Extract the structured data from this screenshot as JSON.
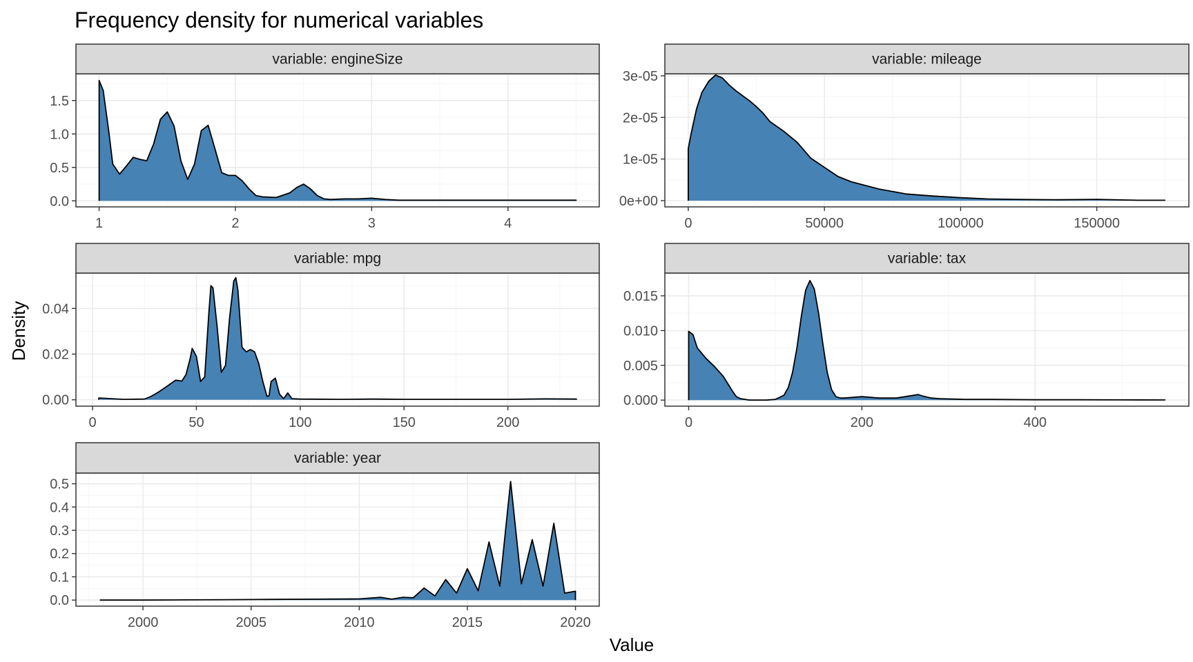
{
  "title": "Frequency density for numerical variables",
  "xlabel": "Value",
  "ylabel": "Density",
  "colors": {
    "fill": "#4682b4",
    "outline": "#000000",
    "strip": "#d9d9d9",
    "grid_major": "#ebebeb",
    "grid_minor": "#f5f5f5",
    "tick_text": "#4d4d4d"
  },
  "chart_data": [
    {
      "type": "area",
      "strip": "variable: engineSize",
      "xlim": [
        0.83,
        4.67
      ],
      "ylim": [
        -0.09,
        1.9
      ],
      "xticks": [
        {
          "v": 1,
          "label": "1"
        },
        {
          "v": 2,
          "label": "2"
        },
        {
          "v": 3,
          "label": "3"
        },
        {
          "v": 4,
          "label": "4"
        }
      ],
      "yticks": [
        {
          "v": 0,
          "label": "0.0"
        },
        {
          "v": 0.5,
          "label": "0.5"
        },
        {
          "v": 1.0,
          "label": "1.0"
        },
        {
          "v": 1.5,
          "label": "1.5"
        }
      ],
      "x": [
        1.0,
        1.03,
        1.07,
        1.1,
        1.15,
        1.2,
        1.25,
        1.3,
        1.35,
        1.4,
        1.45,
        1.5,
        1.55,
        1.6,
        1.65,
        1.7,
        1.75,
        1.8,
        1.85,
        1.9,
        1.95,
        2.0,
        2.05,
        2.1,
        2.15,
        2.2,
        2.3,
        2.4,
        2.45,
        2.5,
        2.55,
        2.6,
        2.65,
        2.7,
        2.8,
        2.9,
        3.0,
        3.1,
        3.2,
        3.5,
        4.0,
        4.5
      ],
      "y": [
        1.8,
        1.65,
        1.05,
        0.55,
        0.4,
        0.52,
        0.65,
        0.62,
        0.6,
        0.85,
        1.22,
        1.33,
        1.12,
        0.6,
        0.32,
        0.55,
        1.05,
        1.13,
        0.78,
        0.42,
        0.38,
        0.38,
        0.3,
        0.18,
        0.08,
        0.06,
        0.05,
        0.12,
        0.2,
        0.25,
        0.18,
        0.08,
        0.03,
        0.02,
        0.03,
        0.03,
        0.04,
        0.02,
        0.01,
        0.01,
        0.01,
        0.01
      ]
    },
    {
      "type": "area",
      "strip": "variable: mileage",
      "xlim": [
        -8600,
        183800
      ],
      "ylim": [
        -1.5e-06,
        3.05e-05
      ],
      "xticks": [
        {
          "v": 0,
          "label": "0"
        },
        {
          "v": 50000,
          "label": "50000"
        },
        {
          "v": 100000,
          "label": "100000"
        },
        {
          "v": 150000,
          "label": "150000"
        }
      ],
      "yticks": [
        {
          "v": 0,
          "label": "0e+00"
        },
        {
          "v": 1e-05,
          "label": "1e-05"
        },
        {
          "v": 2e-05,
          "label": "2e-05"
        },
        {
          "v": 3e-05,
          "label": "3e-05"
        }
      ],
      "x": [
        1,
        1000,
        3000,
        5000,
        7500,
        10000,
        12500,
        15000,
        17500,
        20000,
        22500,
        25000,
        27500,
        30000,
        35000,
        40000,
        45000,
        50000,
        55000,
        60000,
        70000,
        80000,
        90000,
        100000,
        110000,
        120000,
        135000,
        150000,
        165000,
        175000
      ],
      "y": [
        1.25e-05,
        1.6e-05,
        2.2e-05,
        2.6e-05,
        2.87e-05,
        3.02e-05,
        2.95e-05,
        2.78e-05,
        2.64e-05,
        2.52e-05,
        2.4e-05,
        2.26e-05,
        2.1e-05,
        1.9e-05,
        1.67e-05,
        1.4e-05,
        1.02e-05,
        8e-06,
        5.8e-06,
        4.5e-06,
        2.8e-06,
        1.6e-06,
        1.1e-06,
        7e-07,
        4e-07,
        3e-07,
        2e-07,
        3e-07,
        1e-07,
        1e-07
      ]
    },
    {
      "type": "area",
      "strip": "variable: mpg",
      "xlim": [
        -8,
        244
      ],
      "ylim": [
        -0.0028,
        0.0555
      ],
      "xticks": [
        {
          "v": 0,
          "label": "0"
        },
        {
          "v": 50,
          "label": "50"
        },
        {
          "v": 100,
          "label": "100"
        },
        {
          "v": 150,
          "label": "150"
        },
        {
          "v": 200,
          "label": "200"
        }
      ],
      "yticks": [
        {
          "v": 0,
          "label": "0.00"
        },
        {
          "v": 0.02,
          "label": "0.02"
        },
        {
          "v": 0.04,
          "label": "0.04"
        }
      ],
      "x": [
        3,
        15,
        25,
        28,
        32,
        36,
        40,
        43,
        45,
        47,
        48,
        50,
        52,
        54,
        56,
        57,
        58,
        60,
        62,
        64,
        66,
        68,
        69,
        70,
        72,
        74,
        76,
        78,
        80,
        82,
        84,
        85,
        86,
        88,
        90,
        92,
        94,
        96,
        100,
        120,
        135,
        150,
        200,
        218,
        233
      ],
      "y": [
        0.0008,
        0.0002,
        0.0003,
        0.0014,
        0.0035,
        0.006,
        0.0086,
        0.0082,
        0.011,
        0.018,
        0.0225,
        0.019,
        0.008,
        0.01,
        0.038,
        0.05,
        0.049,
        0.032,
        0.012,
        0.015,
        0.036,
        0.052,
        0.0535,
        0.048,
        0.023,
        0.021,
        0.022,
        0.021,
        0.016,
        0.008,
        0.0015,
        0.0018,
        0.008,
        0.0095,
        0.0025,
        0.0005,
        0.003,
        0.0005,
        0.0003,
        0.0002,
        0.0003,
        0.0002,
        0.0002,
        0.0004,
        0.0003
      ]
    },
    {
      "type": "area",
      "strip": "variable: tax",
      "xlim": [
        -27.5,
        577.5
      ],
      "ylim": [
        -0.00087,
        0.01827
      ],
      "xticks": [
        {
          "v": 0,
          "label": "0"
        },
        {
          "v": 200,
          "label": "200"
        },
        {
          "v": 400,
          "label": "400"
        }
      ],
      "yticks": [
        {
          "v": 0,
          "label": "0.000"
        },
        {
          "v": 0.005,
          "label": "0.005"
        },
        {
          "v": 0.01,
          "label": "0.010"
        },
        {
          "v": 0.015,
          "label": "0.015"
        }
      ],
      "x": [
        0,
        5,
        10,
        20,
        30,
        40,
        50,
        55,
        60,
        70,
        80,
        90,
        100,
        110,
        115,
        120,
        125,
        130,
        135,
        140,
        145,
        150,
        155,
        160,
        165,
        170,
        175,
        180,
        190,
        200,
        210,
        220,
        240,
        250,
        260,
        265,
        270,
        280,
        290,
        320,
        350,
        400,
        450,
        500,
        550
      ],
      "y": [
        0.0099,
        0.0094,
        0.0075,
        0.006,
        0.0048,
        0.0034,
        0.0014,
        0.0005,
        0.0002,
        0.0,
        0.0,
        0.0,
        0.0001,
        0.0007,
        0.0018,
        0.004,
        0.0075,
        0.012,
        0.0158,
        0.0172,
        0.016,
        0.0125,
        0.008,
        0.004,
        0.0015,
        0.0005,
        0.0003,
        0.0003,
        0.0004,
        0.0005,
        0.0004,
        0.0003,
        0.0003,
        0.0005,
        0.0007,
        0.0008,
        0.0006,
        0.0003,
        0.0002,
        0.0001,
        0.0001,
        5e-05,
        5e-05,
        3e-05,
        2e-05
      ]
    },
    {
      "type": "area",
      "strip": "variable: year",
      "xlim": [
        1996.9,
        2021.1
      ],
      "ylim": [
        -0.026,
        0.546
      ],
      "xticks": [
        {
          "v": 2000,
          "label": "2000"
        },
        {
          "v": 2005,
          "label": "2005"
        },
        {
          "v": 2010,
          "label": "2010"
        },
        {
          "v": 2015,
          "label": "2015"
        },
        {
          "v": 2020,
          "label": "2020"
        }
      ],
      "yticks": [
        {
          "v": 0,
          "label": "0.0"
        },
        {
          "v": 0.1,
          "label": "0.1"
        },
        {
          "v": 0.2,
          "label": "0.2"
        },
        {
          "v": 0.3,
          "label": "0.3"
        },
        {
          "v": 0.4,
          "label": "0.4"
        },
        {
          "v": 0.5,
          "label": "0.5"
        }
      ],
      "x": [
        1998,
        2000,
        2002,
        2004,
        2006,
        2008,
        2010,
        2011,
        2011.5,
        2012,
        2012.5,
        2013,
        2013.5,
        2014,
        2014.5,
        2015,
        2015.5,
        2016,
        2016.5,
        2017,
        2017.5,
        2018,
        2018.5,
        2019,
        2019.5,
        2020
      ],
      "y": [
        0.0,
        0.0,
        0.001,
        0.002,
        0.003,
        0.004,
        0.005,
        0.012,
        0.004,
        0.012,
        0.01,
        0.052,
        0.018,
        0.088,
        0.03,
        0.135,
        0.04,
        0.25,
        0.06,
        0.51,
        0.07,
        0.26,
        0.06,
        0.33,
        0.03,
        0.038
      ]
    }
  ]
}
